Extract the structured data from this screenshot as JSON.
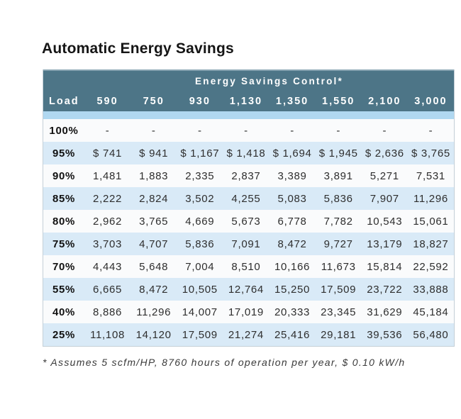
{
  "page": {
    "title": "Automatic Energy Savings"
  },
  "chart_data": {
    "type": "table",
    "title": "Automatic Energy Savings",
    "header_title": "Energy Savings Control*",
    "columns": [
      "Load",
      "590",
      "750",
      "930",
      "1,130",
      "1,350",
      "1,550",
      "2,100",
      "3,000"
    ],
    "rows": [
      {
        "load": "100%",
        "values": [
          "-",
          "-",
          "-",
          "-",
          "-",
          "-",
          "-",
          "-"
        ]
      },
      {
        "load": "95%",
        "values": [
          "$ 741",
          "$ 941",
          "$ 1,167",
          "$ 1,418",
          "$ 1,694",
          "$ 1,945",
          "$ 2,636",
          "$ 3,765"
        ]
      },
      {
        "load": "90%",
        "values": [
          "1,481",
          "1,883",
          "2,335",
          "2,837",
          "3,389",
          "3,891",
          "5,271",
          "7,531"
        ]
      },
      {
        "load": "85%",
        "values": [
          "2,222",
          "2,824",
          "3,502",
          "4,255",
          "5,083",
          "5,836",
          "7,907",
          "11,296"
        ]
      },
      {
        "load": "80%",
        "values": [
          "2,962",
          "3,765",
          "4,669",
          "5,673",
          "6,778",
          "7,782",
          "10,543",
          "15,061"
        ]
      },
      {
        "load": "75%",
        "values": [
          "3,703",
          "4,707",
          "5,836",
          "7,091",
          "8,472",
          "9,727",
          "13,179",
          "18,827"
        ]
      },
      {
        "load": "70%",
        "values": [
          "4,443",
          "5,648",
          "7,004",
          "8,510",
          "10,166",
          "11,673",
          "15,814",
          "22,592"
        ]
      },
      {
        "load": "55%",
        "values": [
          "6,665",
          "8,472",
          "10,505",
          "12,764",
          "15,250",
          "17,509",
          "23,722",
          "33,888"
        ]
      },
      {
        "load": "40%",
        "values": [
          "8,886",
          "11,296",
          "14,007",
          "17,019",
          "20,333",
          "23,345",
          "31,629",
          "45,184"
        ]
      },
      {
        "load": "25%",
        "values": [
          "11,108",
          "14,120",
          "17,509",
          "21,274",
          "25,416",
          "29,181",
          "39,536",
          "56,480"
        ]
      }
    ],
    "footnote": "* Assumes 5 scfm/HP, 8760 hours of operation per year, $ 0.10 kW/h",
    "layout": {
      "header_rows": 2,
      "divider_strip": true,
      "row_striping": "white / pale-blue alternating starting white"
    }
  },
  "colors": {
    "header_teal": "#4d7587",
    "header_top_highlight": "#87a3b1",
    "divider_strip_blue": "#b0d8f1",
    "row_alt_blue": "#d9eaf7",
    "row_white": "#fafbfc",
    "table_border": "#c4cfd7",
    "header_text": "#ffffff",
    "body_text": "#2e2e2e",
    "title_text": "#151515",
    "footnote_text": "#3a3a3a"
  }
}
